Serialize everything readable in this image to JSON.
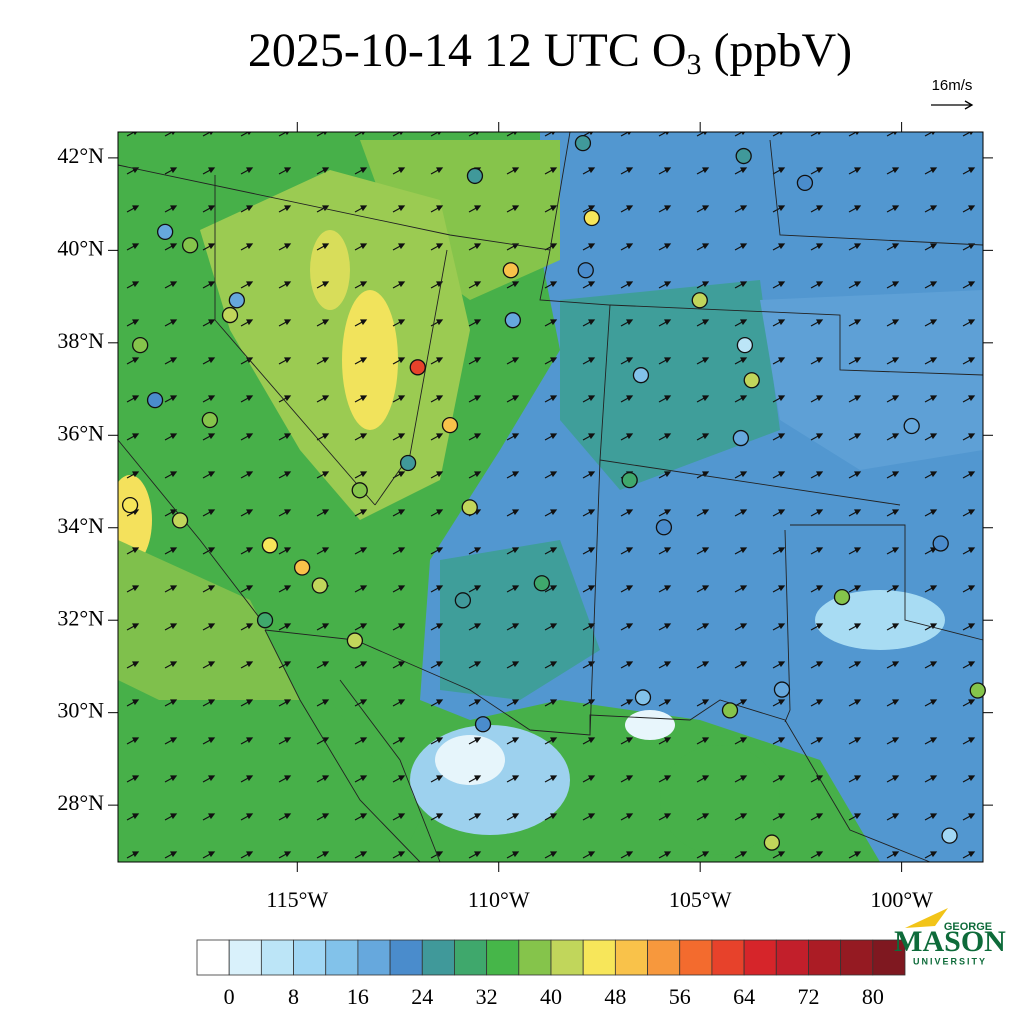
{
  "title": {
    "text": "2025-10-14 12 UTC O",
    "subscript": "3",
    "suffix": " (ppbV)"
  },
  "wind_reference": "16m/s",
  "map": {
    "xlim": [
      -119.45,
      -97.98
    ],
    "ylim": [
      26.77,
      42.56
    ],
    "xticks": [
      {
        "value": -115,
        "label": "115°W"
      },
      {
        "value": -110,
        "label": "110°W"
      },
      {
        "value": -105,
        "label": "105°W"
      },
      {
        "value": -100,
        "label": "100°W"
      }
    ],
    "yticks": [
      {
        "value": 28,
        "label": "28°N"
      },
      {
        "value": 30,
        "label": "30°N"
      },
      {
        "value": 32,
        "label": "32°N"
      },
      {
        "value": 34,
        "label": "34°N"
      },
      {
        "value": 36,
        "label": "36°N"
      },
      {
        "value": 38,
        "label": "38°N"
      },
      {
        "value": 40,
        "label": "40°N"
      },
      {
        "value": 42,
        "label": "42°N"
      }
    ],
    "stations": [
      {
        "lon": -110.59,
        "lat": 41.61,
        "value": 26
      },
      {
        "lon": -107.91,
        "lat": 42.32,
        "value": 26
      },
      {
        "lon": -118.28,
        "lat": 40.4,
        "value": 18
      },
      {
        "lon": -117.66,
        "lat": 40.11,
        "value": 36
      },
      {
        "lon": -116.5,
        "lat": 38.92,
        "value": 18
      },
      {
        "lon": -116.67,
        "lat": 38.6,
        "value": 42
      },
      {
        "lon": -118.9,
        "lat": 37.95,
        "value": 36
      },
      {
        "lon": -118.53,
        "lat": 36.76,
        "value": 22
      },
      {
        "lon": -117.17,
        "lat": 36.33,
        "value": 38
      },
      {
        "lon": -119.15,
        "lat": 34.49,
        "value": 46
      },
      {
        "lon": -117.91,
        "lat": 34.16,
        "value": 40
      },
      {
        "lon": -115.68,
        "lat": 33.62,
        "value": 44
      },
      {
        "lon": -114.88,
        "lat": 33.14,
        "value": 48
      },
      {
        "lon": -114.44,
        "lat": 32.75,
        "value": 42
      },
      {
        "lon": -115.8,
        "lat": 32.0,
        "value": 30
      },
      {
        "lon": -113.57,
        "lat": 31.56,
        "value": 40
      },
      {
        "lon": -112.01,
        "lat": 37.47,
        "value": 62
      },
      {
        "lon": -112.25,
        "lat": 35.4,
        "value": 26
      },
      {
        "lon": -111.21,
        "lat": 36.22,
        "value": 48
      },
      {
        "lon": -110.72,
        "lat": 34.44,
        "value": 42
      },
      {
        "lon": -109.7,
        "lat": 39.57,
        "value": 48
      },
      {
        "lon": -109.65,
        "lat": 38.49,
        "value": 18
      },
      {
        "lon": -107.69,
        "lat": 40.7,
        "value": 44
      },
      {
        "lon": -107.84,
        "lat": 39.57,
        "value": 20
      },
      {
        "lon": -106.47,
        "lat": 37.3,
        "value": 14
      },
      {
        "lon": -105.01,
        "lat": 38.92,
        "value": 42
      },
      {
        "lon": -103.89,
        "lat": 37.95,
        "value": 6
      },
      {
        "lon": -103.72,
        "lat": 37.19,
        "value": 40
      },
      {
        "lon": -103.99,
        "lat": 35.94,
        "value": 16
      },
      {
        "lon": -106.75,
        "lat": 35.03,
        "value": 28
      },
      {
        "lon": -105.9,
        "lat": 34.01,
        "value": 22
      },
      {
        "lon": -110.39,
        "lat": 29.75,
        "value": 20
      },
      {
        "lon": -106.42,
        "lat": 30.33,
        "value": 12
      },
      {
        "lon": -104.26,
        "lat": 30.05,
        "value": 36
      },
      {
        "lon": -102.97,
        "lat": 30.5,
        "value": 16
      },
      {
        "lon": -99.75,
        "lat": 36.2,
        "value": 18
      },
      {
        "lon": -99.03,
        "lat": 33.66,
        "value": 22
      },
      {
        "lon": -101.48,
        "lat": 32.5,
        "value": 36
      },
      {
        "lon": -98.11,
        "lat": 30.48,
        "value": 36
      },
      {
        "lon": -103.22,
        "lat": 27.19,
        "value": 40
      },
      {
        "lon": -102.4,
        "lat": 41.46,
        "value": 22
      },
      {
        "lon": -103.92,
        "lat": 42.04,
        "value": 24
      },
      {
        "lon": -108.93,
        "lat": 32.8,
        "value": 30
      },
      {
        "lon": -110.89,
        "lat": 32.43,
        "value": 24
      },
      {
        "lon": -113.45,
        "lat": 34.81,
        "value": 38
      },
      {
        "lon": -98.81,
        "lat": 27.34,
        "value": 10
      }
    ]
  },
  "colorbar": {
    "levels": [
      0,
      4,
      8,
      12,
      16,
      20,
      24,
      28,
      32,
      36,
      40,
      44,
      48,
      52,
      56,
      60,
      64,
      68,
      72,
      76,
      80
    ],
    "colors": [
      "#ffffff",
      "#d9f1fb",
      "#bce5f7",
      "#a1d7f4",
      "#82c2ea",
      "#66a8dd",
      "#4a8ccc",
      "#40999a",
      "#3fa86c",
      "#46b649",
      "#85c44b",
      "#c1d65b",
      "#f7e65a",
      "#f9c24a",
      "#f7983d",
      "#f36b2e",
      "#e7422b",
      "#d6252a",
      "#c21f2b",
      "#ab1c25",
      "#951a22",
      "#7f1820"
    ],
    "ticks": [
      0,
      8,
      16,
      24,
      32,
      40,
      48,
      56,
      64,
      72,
      80
    ]
  },
  "logo": {
    "top": "GEORGE",
    "main": "MASON",
    "bottom": "UNIVERSITY"
  }
}
